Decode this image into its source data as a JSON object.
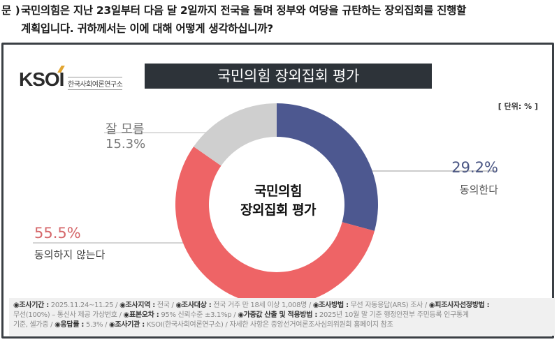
{
  "question": {
    "prefix": "문 )",
    "line1": "국민의힘은 지난 23일부터 다음 달 2일까지 전국을 돌며 정부와 여당을 규탄하는 장외집회를 진행할",
    "line2": "계획입니다. 귀하께서는 이에 대해 어떻게 생각하십니까?"
  },
  "logo": {
    "mark": "KSOI",
    "subtitle": "한국사회여론연구소"
  },
  "title": "국민의힘 장외집회 평가",
  "unit": "[ 단위: % ]",
  "center_label": {
    "line1": "국민의힘",
    "line2": "장외집회 평가"
  },
  "labels": {
    "agree": {
      "name": "동의한다",
      "value": "29.2%"
    },
    "disagree": {
      "name": "동의하지 않는다",
      "value": "55.5%"
    },
    "unknown": {
      "name": "잘 모름",
      "value": "15.3%"
    }
  },
  "colors": {
    "agree": "#4d5890",
    "disagree": "#ee6466",
    "unknown": "#cfcfcf",
    "title_bar": "#2d3339",
    "logo_accent": "#e2a531"
  },
  "chart_data": {
    "type": "pie",
    "subtype": "donut",
    "title": "국민의힘 장외집회 평가",
    "center_text": "국민의힘 장외집회 평가",
    "unit": "%",
    "categories": [
      "동의한다",
      "동의하지 않는다",
      "잘 모름"
    ],
    "values": [
      29.2,
      55.5,
      15.3
    ],
    "colors": [
      "#4d5890",
      "#ee6466",
      "#cfcfcf"
    ],
    "start_angle": "12 o'clock, clockwise",
    "legend": "none (direct labels)"
  },
  "footer": {
    "line1": [
      {
        "key": "◉조사기간 :",
        "val": " 2025.11.24~11.25 / "
      },
      {
        "key": "◉조사지역 :",
        "val": " 전국 / "
      },
      {
        "key": "◉조사대상 :",
        "val": " 전국 거주 만 18세 이상 1,008명 / "
      },
      {
        "key": "◉조사방법 :",
        "val": " 무선 자동응답(ARS) 조사 / "
      },
      {
        "key": "◉피조사자선정방법 :",
        "val": ""
      }
    ],
    "line2": [
      {
        "key": "",
        "val": "무선(100%) – 통신사 제공 가상번호 / "
      },
      {
        "key": "◉표본오차 :",
        "val": " 95% 신뢰수준 ±3.1%p / "
      },
      {
        "key": "◉가중값 산출 및 적용방법 :",
        "val": " 2025년 10월 말 기준 행정안전부 주민등록 인구통계"
      }
    ],
    "line3": [
      {
        "key": "",
        "val": "기준, 셀가중 / "
      },
      {
        "key": "◉응답률 :",
        "val": " 5.3% / "
      },
      {
        "key": "◉조사기관 :",
        "val": " KSOI(한국사회여론연구소) / 자세한 사항은 중앙선거여론조사심의위원회 홈페이지 참조"
      }
    ]
  }
}
